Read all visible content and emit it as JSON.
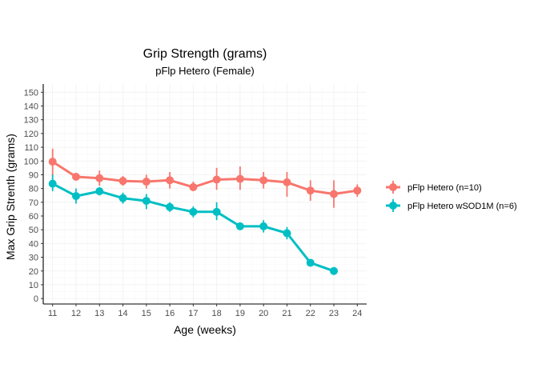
{
  "chart_data": {
    "type": "line",
    "title": "Grip Strength (grams)",
    "subtitle": "pFlp Hetero (Female)",
    "xlabel": "Age (weeks)",
    "ylabel": "Max Grip Strenth (grams)",
    "x": [
      11,
      12,
      13,
      14,
      15,
      16,
      17,
      18,
      19,
      20,
      21,
      22,
      23,
      24
    ],
    "xlim": [
      10.6,
      24.4
    ],
    "ylim": [
      -4,
      156
    ],
    "yticks": [
      0,
      10,
      20,
      30,
      40,
      50,
      60,
      70,
      80,
      90,
      100,
      110,
      120,
      130,
      140,
      150
    ],
    "grid": true,
    "legend_position": "right",
    "series": [
      {
        "name": "pFlp Hetero (n=10)",
        "color": "#F8766D",
        "x": [
          11,
          12,
          13,
          14,
          15,
          16,
          17,
          18,
          19,
          20,
          21,
          22,
          23,
          24
        ],
        "values": [
          99.5,
          88.5,
          87.5,
          85.5,
          85,
          86,
          81,
          86.5,
          87,
          86,
          84.5,
          78.5,
          76,
          78.5
        ],
        "err_low": [
          89,
          86,
          82,
          82,
          80,
          80,
          78,
          79,
          79,
          80,
          74,
          71,
          66,
          74
        ],
        "err_high": [
          109,
          91,
          93,
          89,
          90,
          92,
          85,
          95,
          96,
          92,
          92,
          86,
          86,
          83
        ]
      },
      {
        "name": "pFlp Hetero wSOD1M (n=6)",
        "color": "#00BFC4",
        "x": [
          11,
          12,
          13,
          14,
          15,
          16,
          17,
          18,
          19,
          20,
          21,
          22,
          23
        ],
        "values": [
          83.5,
          74.5,
          78,
          73,
          71,
          66.5,
          63,
          63,
          52.5,
          52.5,
          47.5,
          26,
          20
        ],
        "err_low": [
          78,
          69,
          75,
          69,
          65,
          63,
          59,
          57,
          51,
          48,
          43,
          24,
          19
        ],
        "err_high": [
          90,
          80,
          81,
          77,
          76,
          70,
          67,
          70,
          54,
          57,
          52,
          27,
          21
        ]
      }
    ]
  }
}
